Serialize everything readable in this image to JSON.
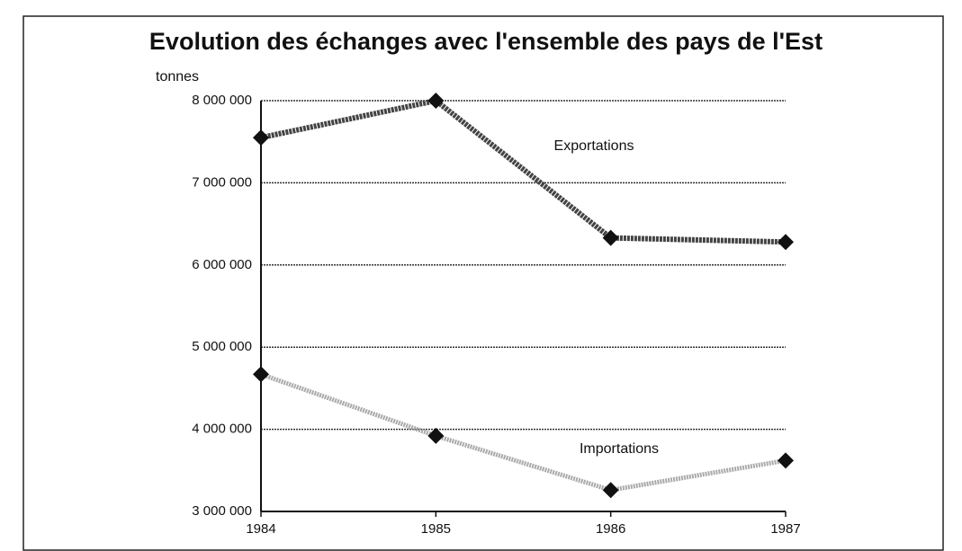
{
  "chart_data": {
    "type": "line",
    "title": "Evolution des échanges avec l'ensemble des pays de l'Est",
    "y_label": "tonnes",
    "categories": [
      "1984",
      "1985",
      "1986",
      "1987"
    ],
    "series": [
      {
        "name": "Exportations",
        "color": "#444444",
        "values": [
          7550000,
          8000000,
          6330000,
          6280000
        ]
      },
      {
        "name": "Importations",
        "color": "#aaaaaa",
        "values": [
          4670000,
          3920000,
          3260000,
          3620000
        ]
      }
    ],
    "ylim": [
      3000000,
      8000000
    ],
    "yticks": [
      {
        "value": 3000000,
        "label": "3 000 000"
      },
      {
        "value": 4000000,
        "label": "4 000 000"
      },
      {
        "value": 5000000,
        "label": "5 000 000"
      },
      {
        "value": 6000000,
        "label": "6 000 000"
      },
      {
        "value": 7000000,
        "label": "7 000 000"
      },
      {
        "value": 8000000,
        "label": "8 000 000"
      }
    ],
    "grid": true
  }
}
